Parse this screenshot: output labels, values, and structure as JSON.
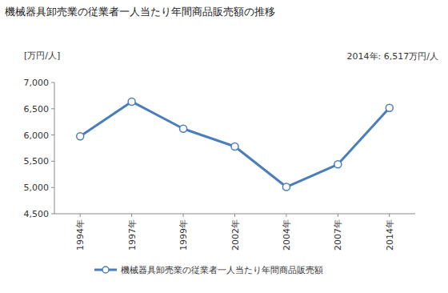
{
  "chart_data": {
    "type": "line",
    "title": "機械器具卸売業の従業者一人当たり年間商品販売額の推移",
    "y_label": "[万円/人]",
    "annotations": [
      "2014年: 6,517万円/人"
    ],
    "categories": [
      "1994年",
      "1997年",
      "1999年",
      "2002年",
      "2004年",
      "2007年",
      "2014年"
    ],
    "series": [
      {
        "name": "機械器具卸売業の従業者一人当たり年間商品販売額",
        "color": "#4a7ebb",
        "marker": "circle",
        "values": [
          5975,
          6635,
          6120,
          5780,
          5010,
          5440,
          6517
        ]
      }
    ],
    "ylim": [
      4500,
      7000
    ],
    "yticks": [
      {
        "value": 4500,
        "label": "4,500"
      },
      {
        "value": 5000,
        "label": "5,000"
      },
      {
        "value": 5500,
        "label": "5,500"
      },
      {
        "value": 6000,
        "label": "6,000"
      },
      {
        "value": 6500,
        "label": "6,500"
      },
      {
        "value": 7000,
        "label": "7,000"
      }
    ],
    "grid": false,
    "legend": "bottom"
  }
}
